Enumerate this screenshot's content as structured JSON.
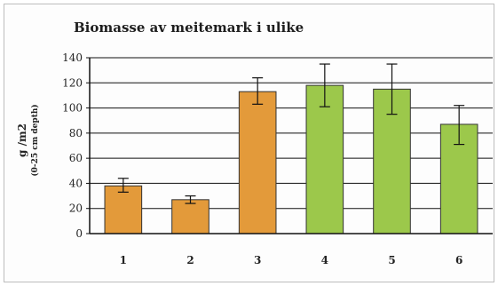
{
  "chart_data": {
    "type": "bar",
    "title": "Biomasse av meitemark i ulike",
    "xlabel": "",
    "ylabel": "g /m2",
    "ylabel_sub": "(0-25 cm depth)",
    "ylim": [
      0,
      140
    ],
    "ytick_step": 20,
    "grid": true,
    "categories": [
      "1",
      "2",
      "3",
      "4",
      "5",
      "6"
    ],
    "values": [
      38,
      27,
      113,
      118,
      115,
      87
    ],
    "error_bars": [
      [
        33,
        44
      ],
      [
        24,
        30
      ],
      [
        103,
        124
      ],
      [
        101,
        135
      ],
      [
        95,
        135
      ],
      [
        71,
        102
      ]
    ],
    "bar_colors": [
      "#E39A3A",
      "#E39A3A",
      "#E39A3A",
      "#9CC84B",
      "#9CC84B",
      "#9CC84B"
    ],
    "bar_stroke": "#333333",
    "gridline_color": "#111111",
    "plot_background": "#fdfdfd"
  }
}
